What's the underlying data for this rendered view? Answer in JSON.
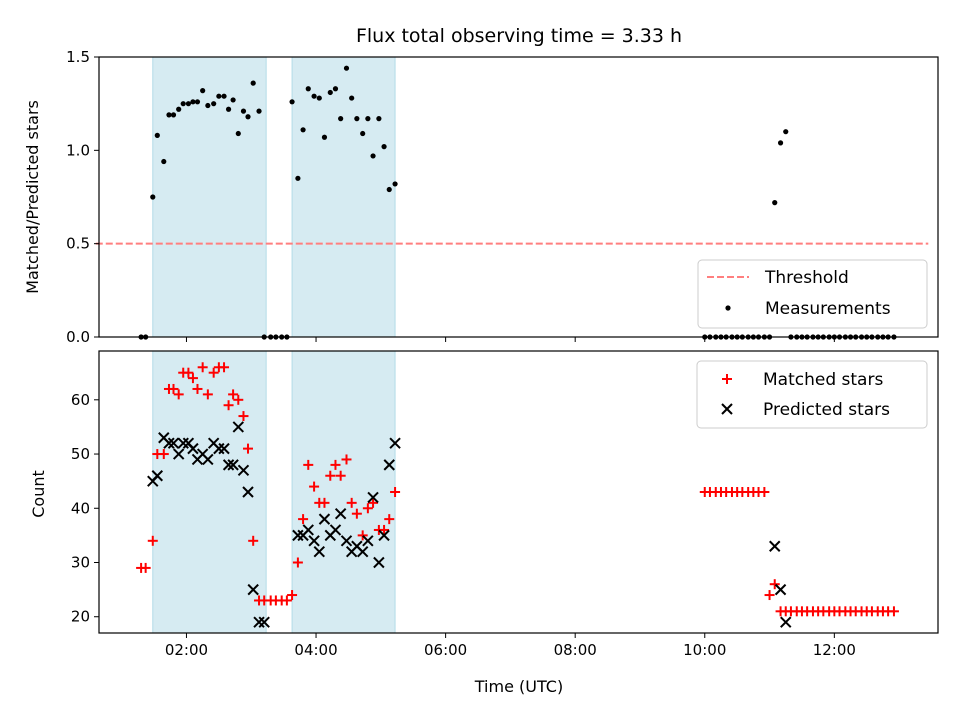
{
  "chart_data": [
    {
      "type": "scatter",
      "title": "Flux total observing time = 3.33 h",
      "xlabel": "",
      "ylabel": "Matched/Predicted stars",
      "xlim": [
        0.65,
        13.6
      ],
      "ylim": [
        0,
        1.5
      ],
      "yticks": [
        "0.0",
        "0.5",
        "1.0",
        "1.5"
      ],
      "shaded_spans": [
        [
          1.48,
          3.23
        ],
        [
          3.63,
          5.22
        ]
      ],
      "threshold": {
        "name": "Threshold",
        "y": 0.5,
        "x": [
          0.6,
          13.45
        ],
        "color": "#ff7f7f"
      },
      "legend": {
        "placement": "lower-right",
        "entries": [
          "Threshold",
          "Measurements"
        ]
      },
      "series": [
        {
          "name": "Measurements",
          "color": "#000000",
          "x": [
            1.3,
            1.37,
            1.48,
            1.55,
            1.65,
            1.73,
            1.8,
            1.88,
            1.95,
            2.03,
            2.1,
            2.17,
            2.25,
            2.33,
            2.42,
            2.5,
            2.58,
            2.65,
            2.72,
            2.8,
            2.88,
            2.95,
            3.03,
            3.12,
            3.2,
            3.3,
            3.38,
            3.47,
            3.55,
            3.63,
            3.72,
            3.8,
            3.88,
            3.97,
            4.05,
            4.13,
            4.22,
            4.3,
            4.38,
            4.47,
            4.55,
            4.63,
            4.72,
            4.8,
            4.88,
            4.97,
            5.05,
            5.13,
            5.22,
            10.0,
            10.08,
            10.17,
            10.25,
            10.33,
            10.42,
            10.5,
            10.58,
            10.67,
            10.75,
            10.83,
            10.92,
            11.0,
            11.08,
            11.17,
            11.25,
            11.33,
            11.42,
            11.5,
            11.58,
            11.67,
            11.75,
            11.83,
            11.92,
            12.0,
            12.08,
            12.17,
            12.25,
            12.33,
            12.42,
            12.5,
            12.58,
            12.67,
            12.75,
            12.83,
            12.92
          ],
          "y": [
            0,
            0,
            0.75,
            1.08,
            0.94,
            1.19,
            1.19,
            1.22,
            1.25,
            1.25,
            1.26,
            1.26,
            1.32,
            1.24,
            1.25,
            1.29,
            1.29,
            1.22,
            1.27,
            1.09,
            1.21,
            1.18,
            1.36,
            1.21,
            0,
            0,
            0,
            0,
            0,
            1.26,
            0.85,
            1.11,
            1.33,
            1.29,
            1.28,
            1.07,
            1.31,
            1.33,
            1.17,
            1.44,
            1.28,
            1.17,
            1.09,
            1.17,
            0.97,
            1.17,
            1.02,
            0.79,
            0.82,
            0,
            0,
            0,
            0,
            0,
            0,
            0,
            0,
            0,
            0,
            0,
            0,
            0,
            0.72,
            1.04,
            1.1,
            0,
            0,
            0,
            0,
            0,
            0,
            0,
            0,
            0,
            0,
            0,
            0,
            0,
            0,
            0,
            0,
            0,
            0,
            0,
            0
          ]
        }
      ]
    },
    {
      "type": "scatter",
      "title": "",
      "xlabel": "Time (UTC)",
      "ylabel": "Count",
      "xlim": [
        0.65,
        13.6
      ],
      "ylim": [
        17,
        69
      ],
      "yticks": [
        "20",
        "30",
        "40",
        "50",
        "60"
      ],
      "xticks": [
        "02:00",
        "04:00",
        "06:00",
        "08:00",
        "10:00",
        "12:00"
      ],
      "shaded_spans": [
        [
          1.48,
          3.23
        ],
        [
          3.63,
          5.22
        ]
      ],
      "legend": {
        "placement": "upper-right",
        "entries": [
          "Matched stars",
          "Predicted stars"
        ]
      },
      "series": [
        {
          "name": "Matched stars",
          "marker": "plus",
          "color": "#ff0000",
          "x": [
            1.3,
            1.37,
            1.48,
            1.55,
            1.65,
            1.73,
            1.8,
            1.88,
            1.95,
            2.03,
            2.1,
            2.17,
            2.25,
            2.33,
            2.42,
            2.5,
            2.58,
            2.65,
            2.72,
            2.8,
            2.88,
            2.95,
            3.03,
            3.12,
            3.2,
            3.3,
            3.38,
            3.47,
            3.55,
            3.63,
            3.72,
            3.8,
            3.88,
            3.97,
            4.05,
            4.13,
            4.22,
            4.3,
            4.38,
            4.47,
            4.55,
            4.63,
            4.72,
            4.8,
            4.88,
            4.97,
            5.05,
            5.13,
            5.22,
            10.0,
            10.08,
            10.17,
            10.25,
            10.33,
            10.42,
            10.5,
            10.58,
            10.67,
            10.75,
            10.83,
            10.92,
            11.0,
            11.08,
            11.17,
            11.25,
            11.33,
            11.42,
            11.5,
            11.58,
            11.67,
            11.75,
            11.83,
            11.92,
            12.0,
            12.08,
            12.17,
            12.25,
            12.33,
            12.42,
            12.5,
            12.58,
            12.67,
            12.75,
            12.83,
            12.92
          ],
          "y": [
            29,
            29,
            34,
            50,
            50,
            62,
            62,
            61,
            65,
            65,
            64,
            62,
            66,
            61,
            65,
            66,
            66,
            59,
            61,
            60,
            57,
            51,
            34,
            23,
            23,
            23,
            23,
            23,
            23,
            24,
            30,
            38,
            48,
            44,
            41,
            41,
            46,
            48,
            46,
            49,
            41,
            39,
            35,
            40,
            41,
            36,
            36,
            38,
            43,
            43,
            43,
            43,
            43,
            43,
            43,
            43,
            43,
            43,
            43,
            43,
            43,
            24,
            26,
            21,
            21,
            21,
            21,
            21,
            21,
            21,
            21,
            21,
            21,
            21,
            21,
            21,
            21,
            21,
            21,
            21,
            21,
            21,
            21,
            21,
            21
          ]
        },
        {
          "name": "Predicted stars",
          "marker": "x",
          "color": "#000000",
          "x": [
            1.48,
            1.55,
            1.65,
            1.73,
            1.8,
            1.88,
            1.95,
            2.03,
            2.1,
            2.17,
            2.25,
            2.33,
            2.42,
            2.5,
            2.58,
            2.65,
            2.72,
            2.8,
            2.88,
            2.95,
            3.03,
            3.12,
            3.2,
            3.72,
            3.8,
            3.88,
            3.97,
            4.05,
            4.13,
            4.22,
            4.3,
            4.38,
            4.47,
            4.55,
            4.63,
            4.72,
            4.8,
            4.88,
            4.97,
            5.05,
            5.13,
            5.22,
            11.08,
            11.17,
            11.25
          ],
          "y": [
            45,
            46,
            53,
            52,
            52,
            50,
            52,
            52,
            51,
            49,
            50,
            49,
            52,
            51,
            51,
            48,
            48,
            55,
            47,
            43,
            25,
            19,
            19,
            35,
            35,
            36,
            34,
            32,
            38,
            35,
            36,
            39,
            34,
            32,
            33,
            32,
            34,
            42,
            30,
            35,
            48,
            52,
            33,
            25,
            19
          ]
        }
      ]
    }
  ]
}
